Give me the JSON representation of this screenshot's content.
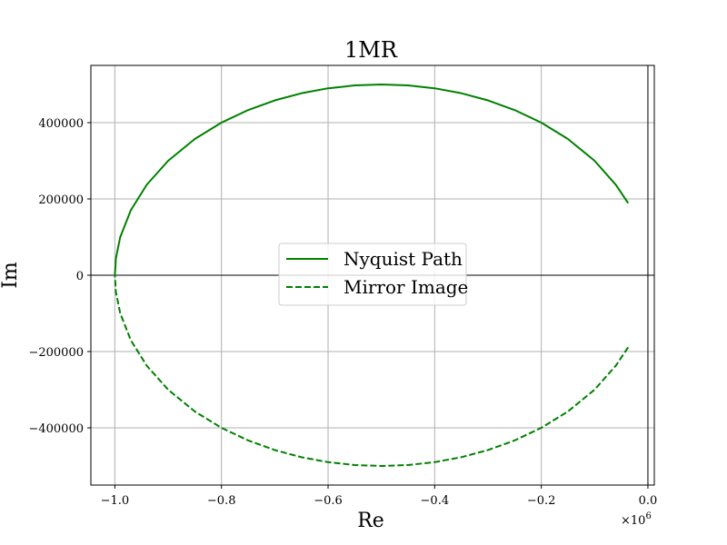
{
  "chart_data": {
    "type": "line",
    "title": "1MR",
    "xlabel": "Re",
    "ylabel": "Im",
    "x_offset_label": "×10",
    "x_offset_exponent": "6",
    "xlim": [
      -1.045,
      0.012
    ],
    "ylim": [
      -550000,
      550000
    ],
    "x_scale": 1000000,
    "xticks": [
      -1.0,
      -0.8,
      -0.6,
      -0.4,
      -0.2,
      0.0
    ],
    "xtick_labels": [
      "−1.0",
      "−0.8",
      "−0.6",
      "−0.4",
      "−0.2",
      "0.0"
    ],
    "yticks": [
      -400000,
      -200000,
      0,
      200000,
      400000
    ],
    "ytick_labels": [
      "−400000",
      "−200000",
      "0",
      "200000",
      "400000"
    ],
    "grid": true,
    "legend_position": "center",
    "series": [
      {
        "name": "Nyquist Path",
        "color": "#008000",
        "style": "solid",
        "x": [
          -37000,
          -60000,
          -100000,
          -150000,
          -200000,
          -250000,
          -300000,
          -350000,
          -400000,
          -450000,
          -500000,
          -550000,
          -600000,
          -650000,
          -700000,
          -750000,
          -800000,
          -850000,
          -900000,
          -940000,
          -970000,
          -990000,
          -998000,
          -1000000
        ],
        "y": [
          188800,
          236700,
          300000,
          357100,
          400000,
          433000,
          458300,
          477000,
          490000,
          497500,
          500000,
          497500,
          490000,
          477000,
          458300,
          433000,
          400000,
          357100,
          300000,
          237500,
          170600,
          99500,
          44700,
          0
        ]
      },
      {
        "name": "Mirror Image",
        "color": "#008000",
        "style": "dashed",
        "x": [
          -37000,
          -60000,
          -100000,
          -150000,
          -200000,
          -250000,
          -300000,
          -350000,
          -400000,
          -450000,
          -500000,
          -550000,
          -600000,
          -650000,
          -700000,
          -750000,
          -800000,
          -850000,
          -900000,
          -940000,
          -970000,
          -990000,
          -998000,
          -1000000
        ],
        "y": [
          -188800,
          -236700,
          -300000,
          -357100,
          -400000,
          -433000,
          -458300,
          -477000,
          -490000,
          -497500,
          -500000,
          -497500,
          -490000,
          -477000,
          -458300,
          -433000,
          -400000,
          -357100,
          -300000,
          -237500,
          -170600,
          -99500,
          -44700,
          0
        ]
      }
    ],
    "reference_lines": {
      "horizontal_zero": true,
      "vertical_zero": true
    }
  }
}
